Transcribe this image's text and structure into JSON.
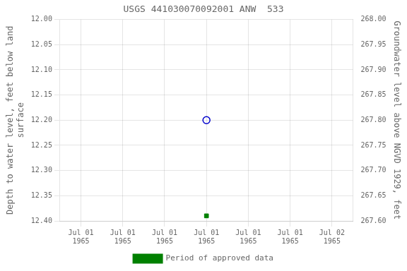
{
  "chart_data": {
    "type": "scatter",
    "title": "USGS 441030070092001 ANW  533",
    "y_label": "Depth to water level, feet below land\nsurface",
    "y2_label": "Groundwater level above NGVD 1929, feet",
    "categories": [
      "Jul 01\n1965",
      "Jul 01\n1965",
      "Jul 01\n1965",
      "Jul 01\n1965",
      "Jul 01\n1965",
      "Jul 01\n1965",
      "Jul 02\n1965"
    ],
    "series": [
      {
        "color": "#0000cc",
        "marker": "circle-open",
        "values": [
          null,
          null,
          null,
          12.2,
          null,
          null,
          null
        ]
      },
      {
        "name": "Period of approved data",
        "color": "#008000",
        "marker": "square",
        "values": [
          null,
          null,
          null,
          12.39,
          null,
          null,
          null
        ]
      }
    ],
    "ylim": [
      12.4,
      12.0
    ],
    "yticks": [
      {
        "value": 12.0,
        "label": "12.00"
      },
      12.05,
      {
        "value": 12.1,
        "label": "12.10"
      },
      12.15,
      {
        "value": 12.2,
        "label": "12.20"
      },
      12.25,
      {
        "value": 12.3,
        "label": "12.30"
      },
      12.35,
      {
        "value": 12.4,
        "label": "12.40"
      }
    ],
    "y2lim": [
      267.6,
      268.0
    ],
    "y2ticks": [
      {
        "value": 268.0,
        "label": "268.00"
      },
      267.95,
      {
        "value": 267.9,
        "label": "267.90"
      },
      267.85,
      {
        "value": 267.8,
        "label": "267.80"
      },
      267.75,
      {
        "value": 267.7,
        "label": "267.70"
      },
      267.65,
      {
        "value": 267.6,
        "label": "267.60"
      }
    ],
    "grid": true,
    "legend": "bottom"
  }
}
